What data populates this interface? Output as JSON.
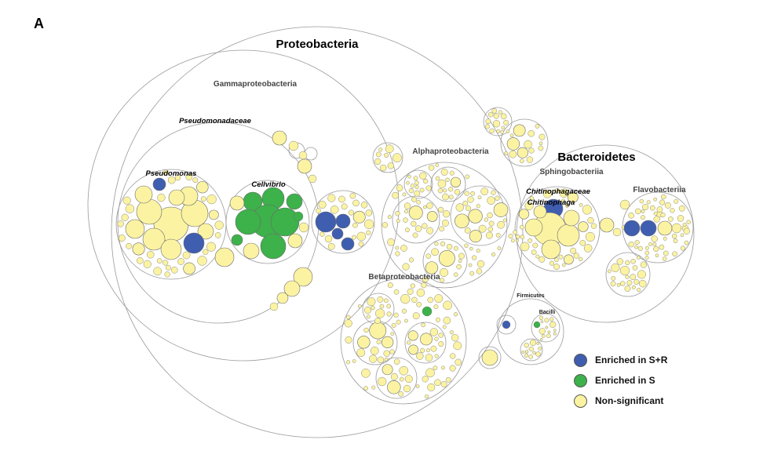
{
  "panel_label": "A",
  "labels": {
    "proteobacteria": "Proteobacteria",
    "gammaproteobacteria": "Gammaproteobacteria",
    "pseudomonadaceae": "Pseudomonadaceae",
    "pseudomonas": "Pseudomonas",
    "cellvibrio": "Cellvibrio",
    "alphaproteobacteria": "Alphaproteobacteria",
    "betaproteobacteria": "Betaproteobacteria",
    "bacteroidetes": "Bacteroidetes",
    "sphingobacteriia": "Sphingobacteriia",
    "chitinophagaceae": "Chitinophagaceae",
    "chitinophaga": "Chitinophaga",
    "flavobacteriia": "Flavobacteriia",
    "firmicutes": "Firmicutes",
    "bacilli": "Bacilli"
  },
  "legend": [
    {
      "label": "Enriched in S+R",
      "color": "#3f5eb0"
    },
    {
      "label": "Enriched in S",
      "color": "#3db14a"
    },
    {
      "label": "Non-significant",
      "color": "#fbf3a2"
    }
  ],
  "colors": {
    "enriched_sr": "#3f5eb0",
    "enriched_s": "#3db14a",
    "non_significant": "#fbf3a2",
    "outline": "#9a9a9a"
  }
}
